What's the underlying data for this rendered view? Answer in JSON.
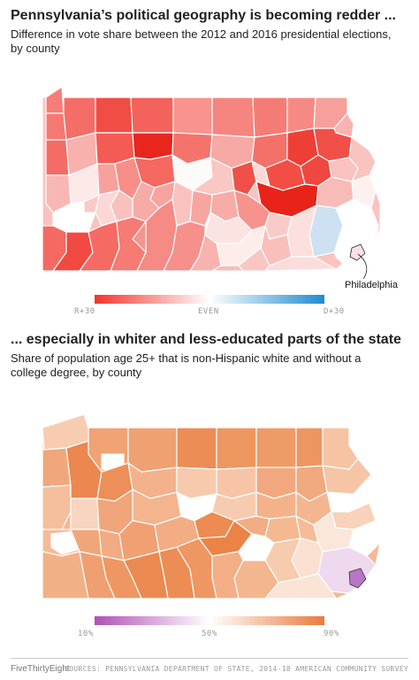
{
  "section1": {
    "title": "Pennsylvania’s political geography is becoming redder ...",
    "subtitle": "Difference in vote share between the 2012 and 2016 presidential elections, by county",
    "callout": "Philadelphia",
    "legend": {
      "left": "R+30",
      "mid": "EVEN",
      "right": "D+30",
      "colors": [
        "#f4342a",
        "#ffffff",
        "#1f8bd0"
      ]
    }
  },
  "section2": {
    "title": "... especially in whiter and less-educated parts of the state",
    "subtitle": "Share of population age 25+ that is non-Hispanic white and without a college degree, by county",
    "legend": {
      "left": "10%",
      "mid": "50%",
      "right": "90%",
      "colors": [
        "#b34fb8",
        "#ffffff",
        "#ea7a3c"
      ]
    }
  },
  "footer": {
    "brand": "FiveThirtyEight",
    "source": "SOURCES: PENNSYLVANIA DEPARTMENT OF STATE, 2014-18 AMERICAN COMMUNITY SURVEY"
  }
}
